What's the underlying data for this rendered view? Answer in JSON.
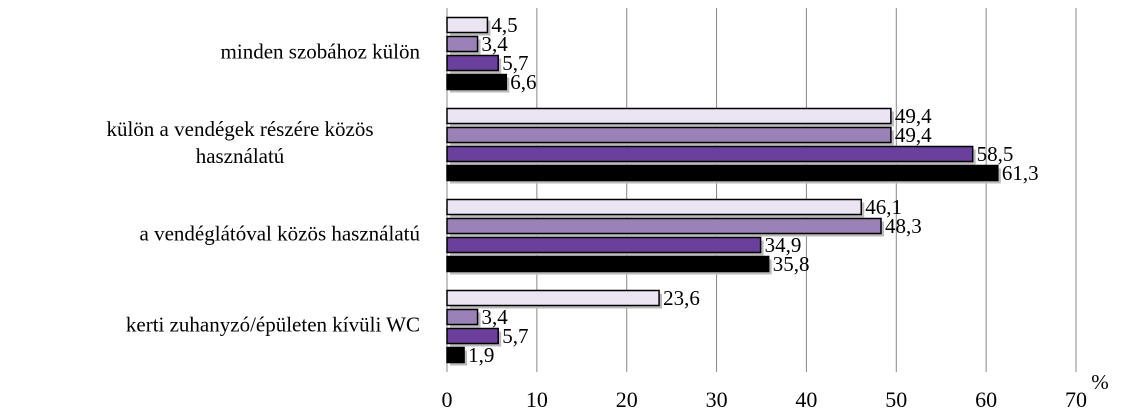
{
  "chart_data": {
    "type": "barh",
    "categories": [
      "minden szobához külön",
      "külön a vendégek részére közös\nhasználatú",
      "a vendéglátóval közös használatú",
      "kerti zuhanyzó/épületen kívüli WC"
    ],
    "series": [
      {
        "color": "#ebe4f2",
        "values": [
          4.5,
          49.4,
          46.1,
          23.6
        ],
        "value_labels": [
          "4,5",
          "49,4",
          "46,1",
          "23,6"
        ]
      },
      {
        "color": "#9b82b6",
        "values": [
          3.4,
          49.4,
          48.3,
          3.4
        ],
        "value_labels": [
          "3,4",
          "49,4",
          "48,3",
          "3,4"
        ]
      },
      {
        "color": "#6b3f9c",
        "values": [
          5.7,
          58.5,
          34.9,
          5.7
        ],
        "value_labels": [
          "5,7",
          "58,5",
          "34,9",
          "5,7"
        ]
      },
      {
        "color": "#000000",
        "values": [
          6.6,
          61.3,
          35.8,
          1.9
        ],
        "value_labels": [
          "6,6",
          "61,3",
          "35,8",
          "1,9"
        ]
      }
    ],
    "xlim": [
      0,
      70
    ],
    "xticks": [
      0,
      10,
      20,
      30,
      40,
      50,
      60,
      70
    ],
    "xlabel": "%",
    "grid": true
  }
}
